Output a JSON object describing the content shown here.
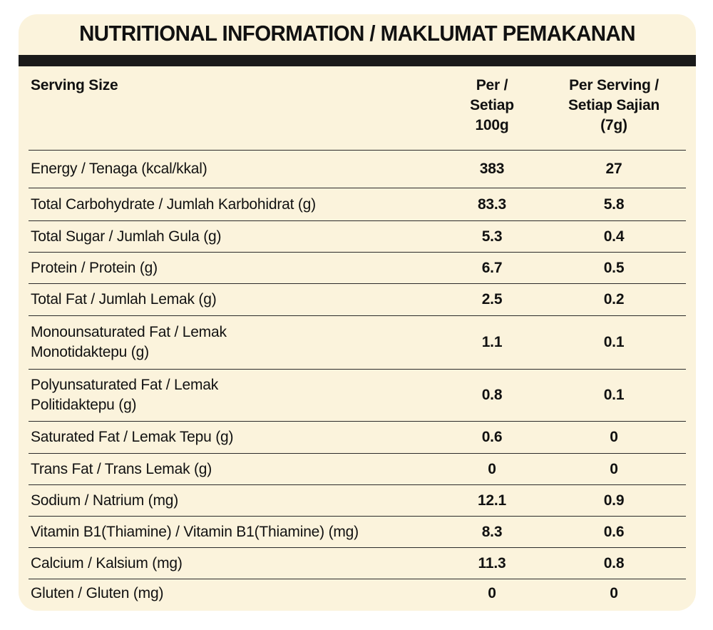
{
  "title": "NUTRITIONAL INFORMATION / MAKLUMAT PEMAKANAN",
  "header": {
    "serving_size": "Serving Size",
    "per_100g": "Per /\nSetiap\n100g",
    "per_serving": "Per Serving /\nSetiap Sajian\n(7g)"
  },
  "rows": [
    {
      "name": "Energy / Tenaga (kcal/kkal)",
      "per100": "383",
      "serving": "27"
    },
    {
      "name": "Total Carbohydrate / Jumlah Karbohidrat (g)",
      "per100": "83.3",
      "serving": "5.8"
    },
    {
      "name": "Total Sugar / Jumlah Gula (g)",
      "per100": "5.3",
      "serving": "0.4"
    },
    {
      "name": "Protein / Protein (g)",
      "per100": "6.7",
      "serving": "0.5"
    },
    {
      "name": "Total Fat / Jumlah Lemak (g)",
      "per100": "2.5",
      "serving": "0.2"
    },
    {
      "name": "Monounsaturated Fat / Lemak Monotidaktepu (g)",
      "per100": "1.1",
      "serving": "0.1"
    },
    {
      "name": "Polyunsaturated Fat / Lemak Politidaktepu (g)",
      "per100": "0.8",
      "serving": "0.1"
    },
    {
      "name": "Saturated Fat / Lemak Tepu (g)",
      "per100": "0.6",
      "serving": "0"
    },
    {
      "name": "Trans Fat / Trans Lemak (g)",
      "per100": "0",
      "serving": "0"
    },
    {
      "name": "Sodium / Natrium (mg)",
      "per100": "12.1",
      "serving": "0.9"
    },
    {
      "name": "Vitamin B1(Thiamine) / Vitamin B1(Thiamine) (mg)",
      "per100": "8.3",
      "serving": "0.6"
    },
    {
      "name": "Calcium / Kalsium (mg)",
      "per100": "11.3",
      "serving": "0.8"
    },
    {
      "name": "Gluten / Gluten (mg)",
      "per100": "0",
      "serving": "0"
    }
  ]
}
